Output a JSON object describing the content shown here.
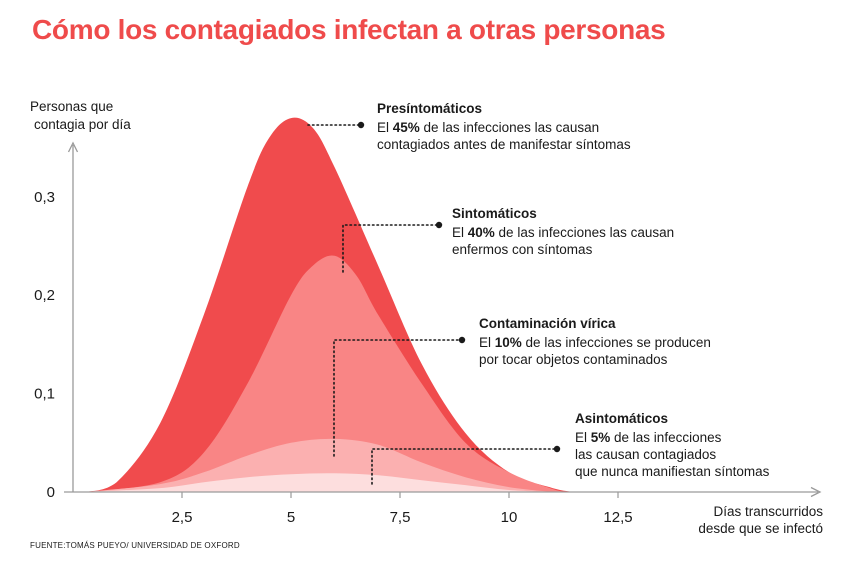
{
  "title": "Cómo los contagiados infectan a otras personas",
  "source": "FUENTE:TOMÁS PUEYO/ UNIVERSIDAD DE OXFORD",
  "colors": {
    "title": "#ef4b4b",
    "presintomaticos": "#f04b4d",
    "sintomaticos": "#f98585",
    "contaminacion": "#fbb0b0",
    "asintomaticos": "#fddede"
  },
  "annotations": [
    {
      "title": "Presíntomáticos",
      "pre": "El ",
      "bold": "45%",
      "post": " de las infecciones las causan",
      "line2": "contagiados antes de manifestar síntomas",
      "line3": ""
    },
    {
      "title": "Sintomáticos",
      "pre": "El ",
      "bold": "40%",
      "post": " de las infecciones las causan",
      "line2": "enfermos con síntomas",
      "line3": ""
    },
    {
      "title": "Contaminación vírica",
      "pre": "El ",
      "bold": "10%",
      "post": " de las infecciones se producen",
      "line2": "por tocar objetos contaminados",
      "line3": ""
    },
    {
      "title": "Asintomáticos",
      "pre": "El ",
      "bold": "5%",
      "post": " de las infecciones",
      "line2": "las causan contagiados",
      "line3": "que nunca manifiestan síntomas"
    }
  ],
  "chart_data": {
    "type": "area",
    "ylabel": [
      "Personas que",
      "contagia por día"
    ],
    "xlabel": [
      "Días transcurridos",
      "desde que se infectó"
    ],
    "xticks": [
      2.5,
      5,
      7.5,
      10,
      12.5
    ],
    "xtick_labels": [
      "2,5",
      "5",
      "7,5",
      "10",
      "12,5"
    ],
    "yticks": [
      0,
      0.1,
      0.2,
      0.3
    ],
    "ytick_labels": [
      "0",
      "0,1",
      "0,2",
      "0,3"
    ],
    "xlim": [
      0,
      14.5
    ],
    "ylim": [
      0,
      0.4
    ],
    "series": [
      {
        "name": "Presíntomáticos",
        "color": "#f04b4d",
        "x": [
          0.3,
          1,
          2,
          3,
          4,
          4.5,
          5,
          5.5,
          6,
          7,
          8,
          9,
          10,
          11,
          11.5
        ],
        "y": [
          0,
          0.01,
          0.07,
          0.18,
          0.31,
          0.36,
          0.38,
          0.37,
          0.33,
          0.23,
          0.13,
          0.06,
          0.02,
          0.004,
          0
        ]
      },
      {
        "name": "Sintomáticos",
        "color": "#f98585",
        "x": [
          0.3,
          2,
          3,
          4,
          5,
          5.5,
          6,
          6.5,
          7,
          8,
          9,
          10,
          11,
          11.3
        ],
        "y": [
          0,
          0.01,
          0.04,
          0.11,
          0.2,
          0.23,
          0.24,
          0.22,
          0.18,
          0.11,
          0.05,
          0.02,
          0.003,
          0
        ]
      },
      {
        "name": "Contaminación vírica",
        "color": "#fbb0b0",
        "x": [
          0.3,
          2,
          3,
          4,
          5,
          6,
          7,
          8,
          9,
          10,
          11
        ],
        "y": [
          0,
          0.008,
          0.02,
          0.037,
          0.05,
          0.054,
          0.048,
          0.03,
          0.015,
          0.005,
          0
        ]
      },
      {
        "name": "Asintomáticos",
        "color": "#fddede",
        "x": [
          0.3,
          2,
          3,
          4,
          5,
          6,
          7,
          8,
          9,
          10,
          11
        ],
        "y": [
          0,
          0.004,
          0.01,
          0.015,
          0.018,
          0.019,
          0.017,
          0.012,
          0.007,
          0.002,
          0
        ]
      }
    ]
  }
}
